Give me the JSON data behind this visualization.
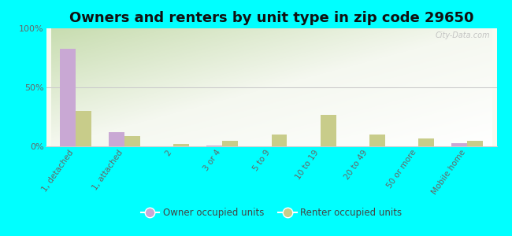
{
  "title": "Owners and renters by unit type in zip code 29650",
  "categories": [
    "1, detached",
    "1, attached",
    "2",
    "3 or 4",
    "5 to 9",
    "10 to 19",
    "20 to 49",
    "50 or more",
    "Mobile home"
  ],
  "owner_values": [
    83,
    12,
    0,
    1,
    0,
    0,
    0,
    0,
    3
  ],
  "renter_values": [
    30,
    9,
    2,
    5,
    10,
    27,
    10,
    7,
    5
  ],
  "owner_color": "#c9a8d4",
  "renter_color": "#c8cc8a",
  "background_color": "#00ffff",
  "ylim": [
    0,
    100
  ],
  "yticks": [
    0,
    50,
    100
  ],
  "ytick_labels": [
    "0%",
    "50%",
    "100%"
  ],
  "legend_owner": "Owner occupied units",
  "legend_renter": "Renter occupied units",
  "bar_width": 0.32,
  "title_fontsize": 13,
  "watermark": "City-Data.com"
}
